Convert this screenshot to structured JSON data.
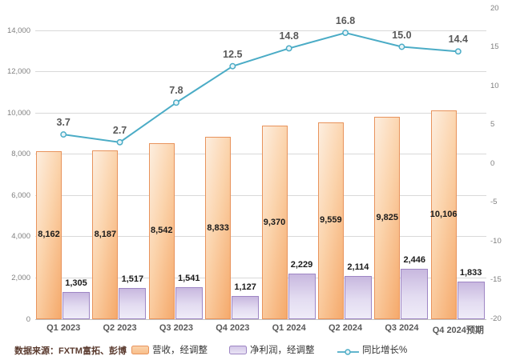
{
  "chart_data": {
    "type": "bar",
    "subtype": "combo-bar-line",
    "categories": [
      "Q1 2023",
      "Q2 2023",
      "Q3 2023",
      "Q4 2023",
      "Q1 2024",
      "Q2 2024",
      "Q3 2024",
      "Q4 2024预期"
    ],
    "series": [
      {
        "name": "营收，经调整",
        "type": "bar",
        "axis": "left",
        "values": [
          8162,
          8187,
          8542,
          8833,
          9370,
          9559,
          9825,
          10106
        ],
        "labels": [
          "8,162",
          "8,187",
          "8,542",
          "8,833",
          "9,370",
          "9,559",
          "9,825",
          "10,106"
        ]
      },
      {
        "name": "净利润，经调整",
        "type": "bar",
        "axis": "left",
        "values": [
          1305,
          1517,
          1541,
          1127,
          2229,
          2114,
          2446,
          1833
        ],
        "labels": [
          "1,305",
          "1,517",
          "1,541",
          "1,127",
          "2,229",
          "2,114",
          "2,446",
          "1,833"
        ]
      },
      {
        "name": "同比增长%",
        "type": "line",
        "axis": "right",
        "values": [
          3.7,
          2.7,
          7.8,
          12.5,
          14.8,
          16.8,
          15.0,
          14.4
        ],
        "labels": [
          "3.7",
          "2.7",
          "7.8",
          "12.5",
          "14.8",
          "16.8",
          "15.0",
          "14.4"
        ]
      }
    ],
    "left_axis": {
      "min": 0,
      "max": 14000,
      "tick_step": 2000,
      "tick_labels": [
        "0",
        "2,000",
        "4,000",
        "6,000",
        "8,000",
        "10,000",
        "12,000",
        "14,000"
      ]
    },
    "right_axis": {
      "min": -20,
      "max": 20,
      "tick_step": 5,
      "tick_labels": [
        "20",
        "15",
        "10",
        "5",
        "0",
        "-5",
        "-10",
        "-15",
        "-20"
      ],
      "unit": "%"
    },
    "grid": true,
    "legend_position": "bottom",
    "legend": [
      {
        "label": "营收，经调整",
        "swatch": "bar-orange"
      },
      {
        "label": "净利润，经调整",
        "swatch": "bar-purple"
      },
      {
        "label": "同比增长%",
        "swatch": "line-teal"
      }
    ],
    "source_note": "数据来源：FXTM富拓、彭博"
  },
  "colors": {
    "revenue_fill_light": "#FDEEDF",
    "revenue_fill_dark": "#F5A96B",
    "revenue_border": "#E8935C",
    "profit_fill_dark": "#C8B8DF",
    "profit_fill_light": "#EFECF8",
    "profit_border": "#9E86C4",
    "growth_line": "#4BACC6",
    "marker_fill": "#EAF4F8",
    "gridline": "#D9D9D9",
    "axis_text": "#7F7F7F",
    "category_text": "#595959",
    "bar_label_text": "#1A1A1A",
    "line_label_text": "#595959",
    "legend_text": "#333333",
    "source_text": "#5A3A2E"
  }
}
